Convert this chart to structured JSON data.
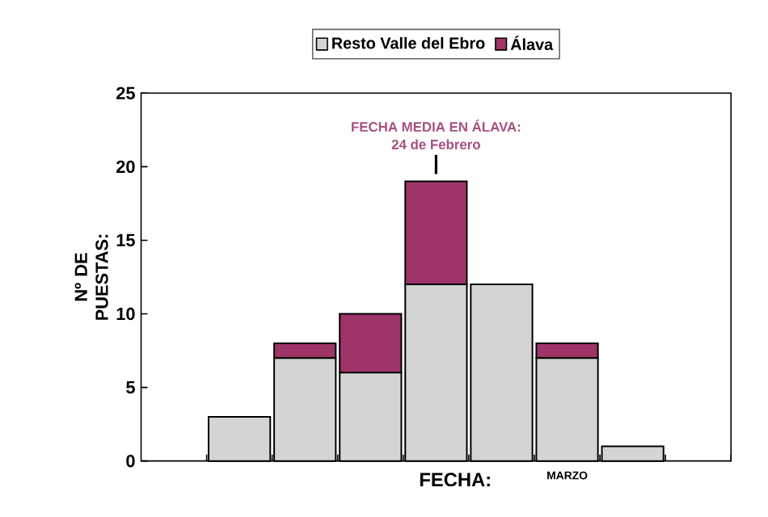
{
  "chart_data": {
    "type": "bar",
    "stacked": true,
    "xlabel": "FECHA:",
    "ylabel": "Nº DE PUESTAS:",
    "categories": [
      null,
      null,
      null,
      null,
      null,
      null,
      null
    ],
    "series": [
      {
        "name": "Resto Valle del Ebro",
        "color": "#d4d4d4",
        "values": [
          3,
          7,
          6,
          12,
          12,
          7,
          1
        ]
      },
      {
        "name": "Álava",
        "color": "#9e3468",
        "values": [
          null,
          1,
          4,
          7,
          null,
          1,
          null
        ]
      }
    ],
    "ylim": [
      0,
      25
    ],
    "yticks": [
      {
        "value": 0,
        "label": "0"
      },
      {
        "value": 5,
        "label": "5"
      },
      {
        "value": 10,
        "label": "10"
      },
      {
        "value": 15,
        "label": "15"
      },
      {
        "value": 20,
        "label": "20"
      },
      {
        "value": 25,
        "label": "25"
      }
    ],
    "legend": "top",
    "annotations": [
      "FECHA MEDIA EN ÁLAVA:",
      "24 de Febrero",
      "MARZO"
    ]
  }
}
